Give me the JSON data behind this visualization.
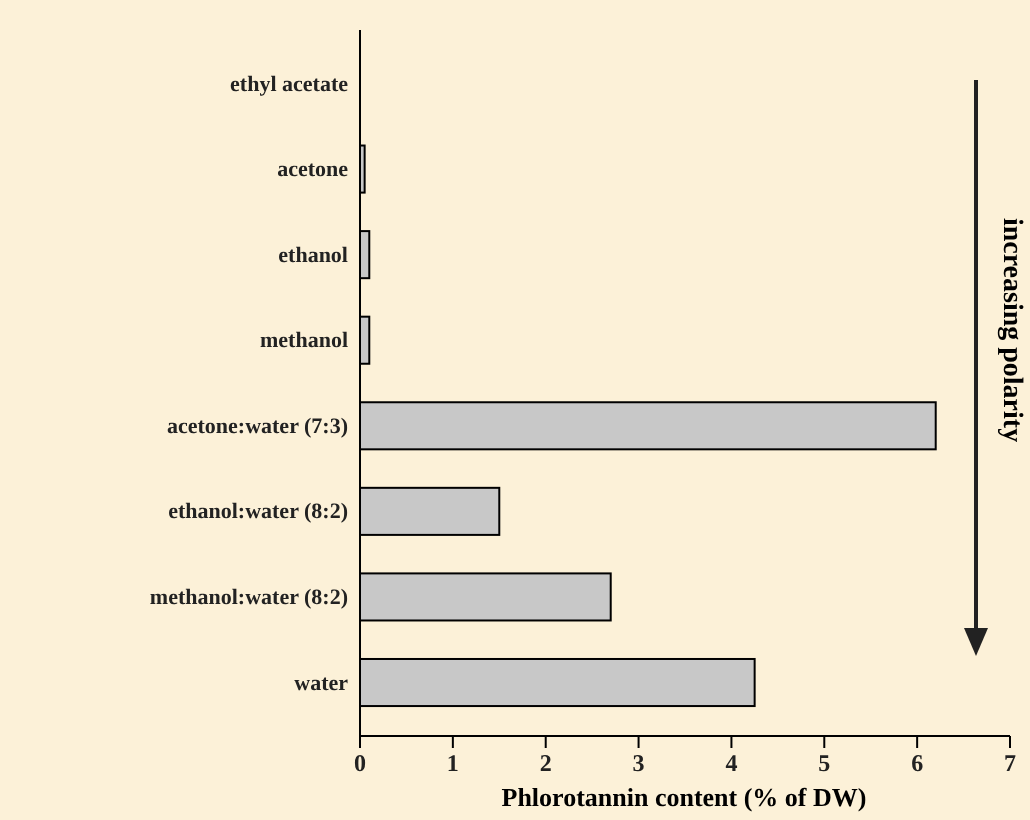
{
  "chart_data": {
    "type": "bar",
    "orientation": "horizontal",
    "categories": [
      "ethyl acetate",
      "acetone",
      "ethanol",
      "methanol",
      "acetone:water (7:3)",
      "ethanol:water (8:2)",
      "methanol:water (8:2)",
      "water"
    ],
    "values": [
      0,
      0.05,
      0.1,
      0.1,
      6.2,
      1.5,
      2.7,
      4.25
    ],
    "color": "#c8c8c8",
    "xlim": [
      0,
      7
    ],
    "xticks": [
      0,
      1,
      2,
      3,
      4,
      5,
      6,
      7
    ],
    "xlabel": "Phlorotannin content (% of DW)",
    "annotations": [
      "increasing polarity"
    ],
    "grid": false
  }
}
